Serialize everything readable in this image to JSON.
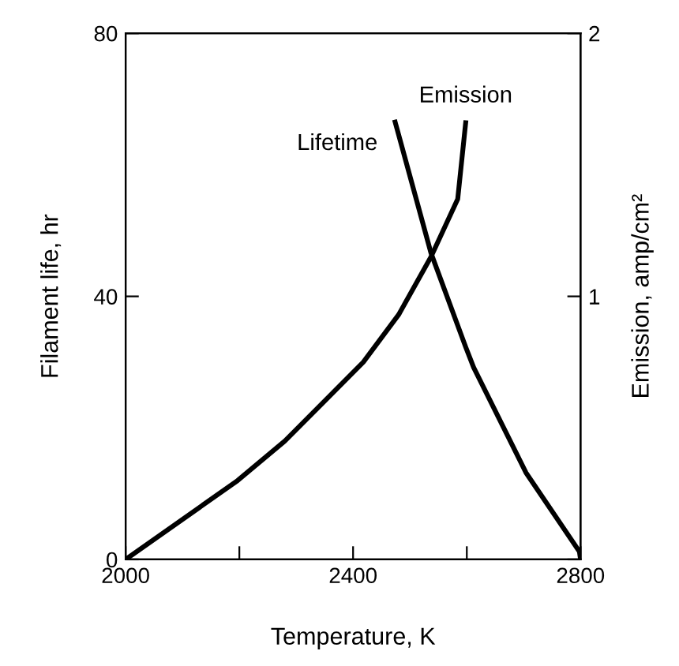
{
  "chart_data": {
    "type": "line",
    "xlabel": "Temperature, K",
    "ylabel": "Filament life, hr",
    "y2label": "Emission, amp/cm²",
    "xlim": [
      2000,
      2800
    ],
    "xticks": [
      2000,
      {
        "value": 2200,
        "label": null
      },
      2400,
      {
        "value": 2600,
        "label": null
      },
      2800
    ],
    "ylim": [
      0,
      80
    ],
    "yticks": [
      0,
      40,
      80
    ],
    "y2lim": [
      0,
      2
    ],
    "y2ticks": [
      {
        "value": 0,
        "label": null
      },
      1,
      2
    ],
    "grid": false,
    "legend": false,
    "marker": "none",
    "line_style": "solid",
    "series": [
      {
        "name": "Lifetime",
        "color": "#000000",
        "x": [
          2474,
          2537,
          2598,
          2612,
          2704,
          2798,
          2800
        ],
        "values": [
          66.5,
          46.6,
          32.3,
          29.2,
          13.2,
          1.2,
          0
        ]
      },
      {
        "name": "Emission",
        "color": "#000000",
        "axis": "y2",
        "x": [
          2000,
          2197,
          2280,
          2418,
          2480,
          2537,
          2584,
          2598
        ],
        "values": [
          0,
          0.3,
          0.45,
          0.75,
          0.93,
          1.15,
          1.37,
          1.66
        ]
      }
    ]
  }
}
